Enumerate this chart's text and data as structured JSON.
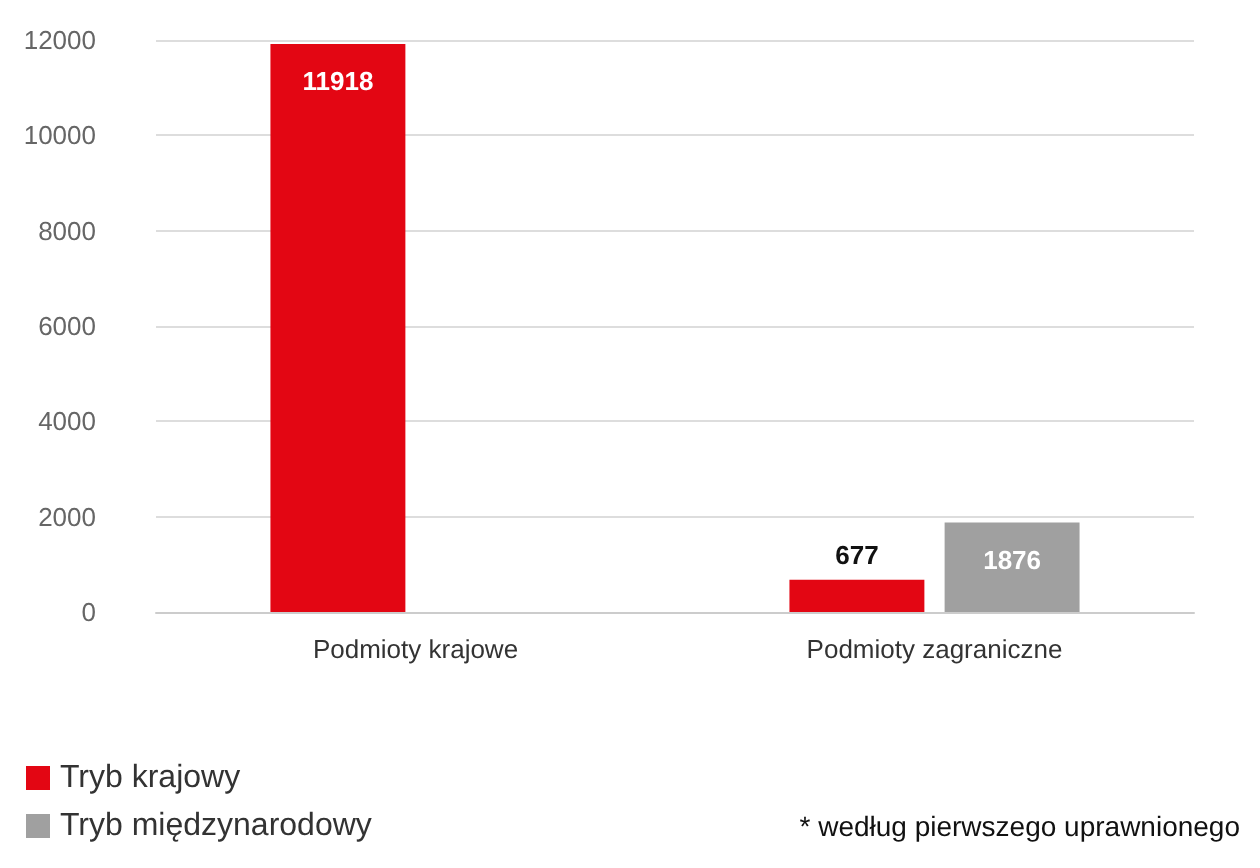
{
  "chart_data": {
    "type": "bar",
    "categories": [
      "Podmioty krajowe",
      "Podmioty zagraniczne"
    ],
    "series": [
      {
        "name": "Tryb krajowy",
        "color": "#e30613",
        "values": [
          11918,
          677
        ]
      },
      {
        "name": "Tryb międzynarodowy",
        "color": "#a0a0a0",
        "values": [
          null,
          1876
        ]
      }
    ],
    "ylim": [
      0,
      12000
    ],
    "yticks": [
      0,
      2000,
      4000,
      6000,
      8000,
      10000,
      12000
    ],
    "grid": "y",
    "legend": "bottom left",
    "data_labels": true,
    "annotations": [
      "* według pierwszego uprawnionego"
    ]
  }
}
